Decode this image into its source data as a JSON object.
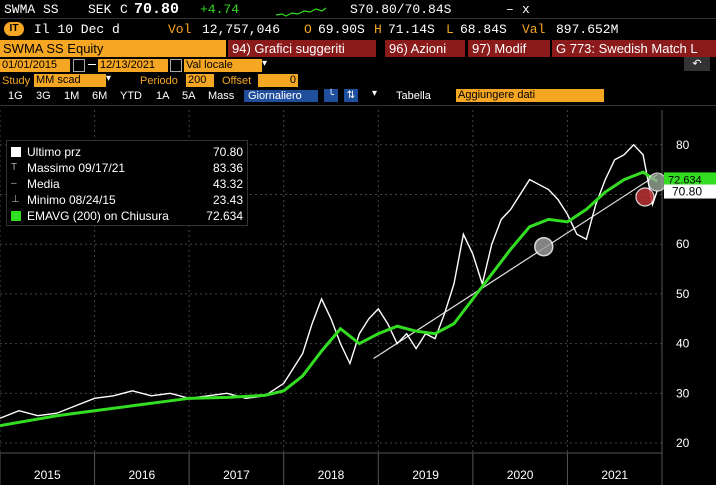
{
  "header": {
    "ticker": "SWMA SS",
    "currency": "SEK",
    "c_marker": "C",
    "last": "70.80",
    "change": "+4.74",
    "bid_ask": "S70.80/70.84S",
    "x_marker": "x",
    "dash_marker": "–",
    "line2_info": "Il 10 Dec d",
    "vol_label": "Vol",
    "vol": "12,757,046",
    "open_label": "O",
    "open": "69.90S",
    "high_label": "H",
    "high": "71.14S",
    "low_label": "L",
    "low": "68.84S",
    "val_label": "Val",
    "val": "897.652M",
    "badge": "IT"
  },
  "toolbar1": {
    "security": "SWMA SS Equity",
    "btn_suggest": "94) Grafici suggeriti",
    "btn_actions": "96) Azioni",
    "btn_modify": "97) Modif",
    "btn_g": "G 773: Swedish Match L"
  },
  "toolbar2": {
    "date_from": "01/01/2015",
    "date_to": "12/13/2021",
    "currency_mode": "Val locale"
  },
  "toolbar3": {
    "study_label": "Study",
    "study_value": "MM scad",
    "period_label": "Periodo",
    "period_value": "200",
    "offset_label": "Offset",
    "offset_value": "0"
  },
  "toolbar4": {
    "ranges": [
      "1G",
      "3G",
      "1M",
      "6M",
      "YTD",
      "1A",
      "5A",
      "Mass"
    ],
    "interval": "Giornaliero",
    "table": "Tabella",
    "add_data_placeholder": "Aggiungere dati"
  },
  "legend": {
    "rows": [
      {
        "name": "Ultimo prz",
        "value": "70.80"
      },
      {
        "name": "Massimo 09/17/21",
        "value": "83.36"
      },
      {
        "name": "Media",
        "value": "43.32"
      },
      {
        "name": "Minimo 08/24/15",
        "value": "23.43"
      },
      {
        "name": "EMAVG (200)  on Chiusura",
        "value": "72.634"
      }
    ]
  },
  "colors": {
    "ema": "#33dd22",
    "price": "#ffffff",
    "orange": "#f5a623",
    "button_red": "#8b1a1a",
    "last_price_tag": "#ffffff",
    "ema_tag": "#33dd22"
  },
  "chart_data": {
    "type": "line",
    "x_ticks": [
      "2015",
      "2016",
      "2017",
      "2018",
      "2019",
      "2020",
      "2021"
    ],
    "y_ticks": [
      20,
      30,
      40,
      50,
      60,
      70,
      80
    ],
    "ylim": [
      18,
      87
    ],
    "xlim": [
      2015.0,
      2022.0
    ],
    "last_price_tag": "70.80",
    "ema_tag": "72.634",
    "series": [
      {
        "name": "Ultimo prz",
        "x": [
          2015.0,
          2015.2,
          2015.4,
          2015.6,
          2015.8,
          2016.0,
          2016.2,
          2016.4,
          2016.6,
          2016.8,
          2017.0,
          2017.2,
          2017.4,
          2017.6,
          2017.8,
          2018.0,
          2018.1,
          2018.2,
          2018.3,
          2018.4,
          2018.5,
          2018.6,
          2018.7,
          2018.8,
          2018.9,
          2019.0,
          2019.1,
          2019.2,
          2019.3,
          2019.4,
          2019.5,
          2019.6,
          2019.7,
          2019.8,
          2019.9,
          2020.0,
          2020.1,
          2020.2,
          2020.3,
          2020.4,
          2020.5,
          2020.6,
          2020.7,
          2020.8,
          2020.9,
          2021.0,
          2021.1,
          2021.2,
          2021.3,
          2021.4,
          2021.5,
          2021.6,
          2021.7,
          2021.8,
          2021.9,
          2021.95
        ],
        "values": [
          25,
          26.5,
          25.5,
          26,
          27.5,
          29,
          29.5,
          30.5,
          29.5,
          30,
          29,
          29.5,
          30,
          29,
          29.5,
          32,
          35,
          38,
          44,
          49,
          45,
          40,
          36,
          42,
          45,
          47,
          44,
          40,
          42,
          39,
          42,
          41,
          46,
          52,
          62,
          58,
          52,
          60,
          65,
          67,
          70,
          73,
          72,
          71,
          69,
          66,
          62,
          61,
          68,
          73,
          77,
          78,
          80,
          78,
          68,
          70.8
        ]
      },
      {
        "name": "EMAVG (200)  on Chiusura",
        "x": [
          2015.0,
          2015.3,
          2015.6,
          2016.0,
          2016.4,
          2016.8,
          2017.0,
          2017.4,
          2017.8,
          2018.0,
          2018.2,
          2018.4,
          2018.6,
          2018.8,
          2019.0,
          2019.2,
          2019.4,
          2019.6,
          2019.8,
          2020.0,
          2020.2,
          2020.4,
          2020.6,
          2020.8,
          2021.0,
          2021.2,
          2021.4,
          2021.6,
          2021.8,
          2021.95
        ],
        "values": [
          23.5,
          24.5,
          25.5,
          26.5,
          27.5,
          28.5,
          29,
          29.2,
          29.6,
          30.5,
          33.5,
          38.5,
          43,
          40,
          42,
          43.5,
          42.5,
          42,
          44,
          49,
          54,
          59,
          63.5,
          65,
          64.5,
          67,
          70.5,
          73,
          74.5,
          72.634
        ]
      },
      {
        "name": "trendline",
        "x": [
          2018.95,
          2021.95
        ],
        "values": [
          37,
          74
        ]
      }
    ]
  }
}
